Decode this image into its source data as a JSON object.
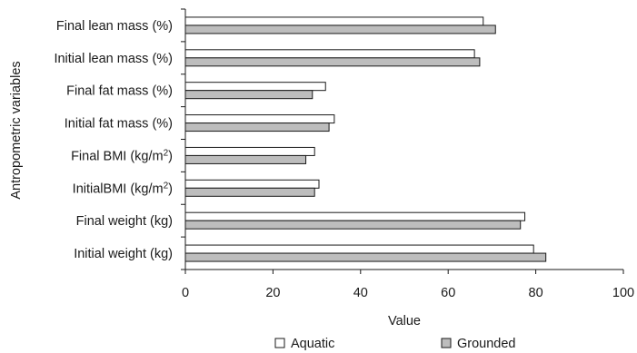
{
  "chart_data": {
    "type": "bar",
    "orientation": "horizontal",
    "categories": [
      "Final lean mass (%)",
      "Initial lean mass (%)",
      "Final fat mass (%)",
      "Initial fat mass (%)",
      "Final BMI (kg/m2)",
      "InitialBMI  (kg/m2)",
      "Final weight (kg)",
      "Initial weight (kg)"
    ],
    "series": [
      {
        "name": "Aquatic",
        "color": "#ffffff",
        "values": [
          68.0,
          66.0,
          32.0,
          34.0,
          29.5,
          30.5,
          77.5,
          79.5
        ]
      },
      {
        "name": "Grounded",
        "color": "#bdbdbd",
        "values": [
          70.8,
          67.2,
          29.0,
          32.8,
          27.5,
          29.5,
          76.5,
          82.3
        ]
      }
    ],
    "xlabel": "Value",
    "ylabel": "Antropometric variables",
    "xlim": [
      0,
      100
    ],
    "xticks": [
      "0",
      "20",
      "40",
      "60",
      "80",
      "100"
    ],
    "grid": false,
    "legend_position": "bottom"
  }
}
